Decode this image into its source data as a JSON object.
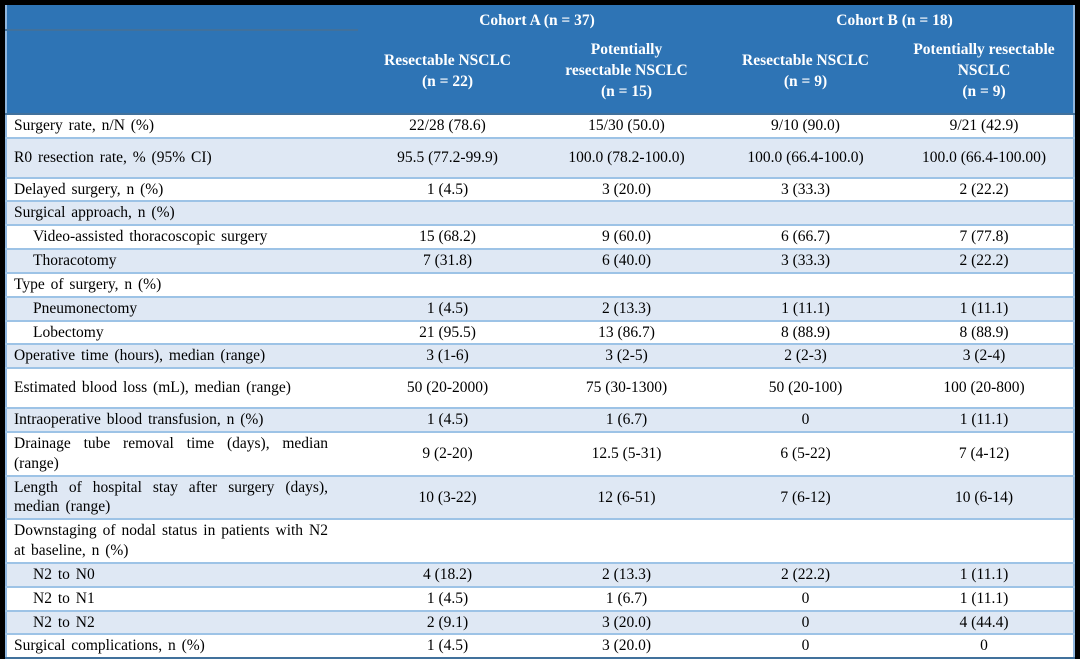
{
  "colors": {
    "header_blue": "#2e74b5",
    "stripe_light_blue": "#dfe8f4",
    "row_border_blue": "#9dc3e6",
    "outer_border_blue": "#41719c",
    "header_text": "#ffffff",
    "body_text": "#000000",
    "page_background": "#000000"
  },
  "header": {
    "cohort_a": "Cohort A (n = 37)",
    "cohort_b": "Cohort B (n = 18)",
    "columns": [
      "Resectable NSCLC\n(n = 22)",
      "Potentially\nresectable NSCLC\n(n = 15)",
      "Resectable NSCLC\n(n = 9)",
      "Potentially resectable\nNSCLC\n(n = 9)"
    ]
  },
  "rows": [
    {
      "label": "Surgery rate, n/N (%)",
      "values": [
        "22/28 (78.6)",
        "15/30 (50.0)",
        "9/10 (90.0)",
        "9/21 (42.9)"
      ]
    },
    {
      "label": "R0 resection rate, % (95% CI)",
      "values": [
        "95.5 (77.2-99.9)",
        "100.0 (78.2-100.0)",
        "100.0 (66.4-100.0)",
        "100.0 (66.4-100.00)"
      ]
    },
    {
      "label": "Delayed surgery, n (%)",
      "values": [
        "1 (4.5)",
        "3 (20.0)",
        "3 (33.3)",
        "2 (22.2)"
      ]
    },
    {
      "label": "Surgical approach, n (%)",
      "values": [
        "",
        "",
        "",
        ""
      ]
    },
    {
      "label": "Video-assisted thoracoscopic surgery",
      "values": [
        "15 (68.2)",
        "9 (60.0)",
        "6 (66.7)",
        "7 (77.8)"
      ]
    },
    {
      "label": "Thoracotomy",
      "values": [
        "7 (31.8)",
        "6 (40.0)",
        "3 (33.3)",
        "2 (22.2)"
      ]
    },
    {
      "label": "Type of surgery, n (%)",
      "values": [
        "",
        "",
        "",
        ""
      ]
    },
    {
      "label": "Pneumonectomy",
      "values": [
        "1 (4.5)",
        "2 (13.3)",
        "1 (11.1)",
        "1 (11.1)"
      ]
    },
    {
      "label": "Lobectomy",
      "values": [
        "21 (95.5)",
        "13 (86.7)",
        "8 (88.9)",
        "8 (88.9)"
      ]
    },
    {
      "label": "Operative time (hours), median (range)",
      "values": [
        "3 (1-6)",
        "3 (2-5)",
        "2 (2-3)",
        "3 (2-4)"
      ]
    },
    {
      "label": "Estimated blood loss (mL), median (range)",
      "values": [
        "50 (20-2000)",
        "75 (30-1300)",
        "50 (20-100)",
        "100 (20-800)"
      ]
    },
    {
      "label": "Intraoperative blood transfusion, n (%)",
      "values": [
        "1 (4.5)",
        "1 (6.7)",
        "0",
        "1 (11.1)"
      ]
    },
    {
      "label": "Drainage tube removal time (days), median (range)",
      "values": [
        "9 (2-20)",
        "12.5 (5-31)",
        "6 (5-22)",
        "7 (4-12)"
      ]
    },
    {
      "label": "Length of hospital stay after surgery (days), median (range)",
      "values": [
        "10 (3-22)",
        "12 (6-51)",
        "7 (6-12)",
        "10 (6-14)"
      ]
    },
    {
      "label": "Downstaging of nodal status in patients with N2 at baseline, n (%)",
      "values": [
        "",
        "",
        "",
        ""
      ]
    },
    {
      "label": "N2 to N0",
      "values": [
        "4 (18.2)",
        "2 (13.3)",
        "2 (22.2)",
        "1 (11.1)"
      ]
    },
    {
      "label": "N2 to N1",
      "values": [
        "1 (4.5)",
        "1 (6.7)",
        "0",
        "1 (11.1)"
      ]
    },
    {
      "label": "N2 to N2",
      "values": [
        "2 (9.1)",
        "3 (20.0)",
        "0",
        "4 (44.4)"
      ]
    },
    {
      "label": "Surgical complications, n (%)",
      "values": [
        "1 (4.5)",
        "3 (20.0)",
        "0",
        "0"
      ]
    }
  ]
}
